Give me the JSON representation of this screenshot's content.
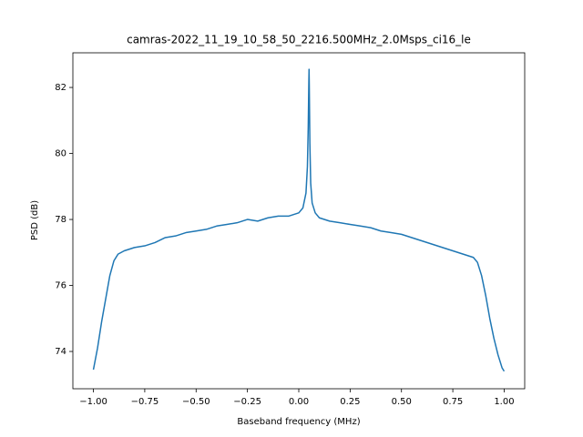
{
  "chart_data": {
    "type": "line",
    "title": "camras-2022_11_19_10_58_50_2216.500MHz_2.0Msps_ci16_le",
    "x_label": "Baseband frequency (MHz)",
    "y_label": "PSD (dB)",
    "series": [
      {
        "color": "#1f77b4",
        "x": [
          -1.0,
          -0.98,
          -0.96,
          -0.94,
          -0.92,
          -0.9,
          -0.88,
          -0.85,
          -0.8,
          -0.75,
          -0.7,
          -0.65,
          -0.6,
          -0.55,
          -0.5,
          -0.45,
          -0.4,
          -0.35,
          -0.3,
          -0.25,
          -0.2,
          -0.15,
          -0.1,
          -0.05,
          0.0,
          0.02,
          0.035,
          0.042,
          0.046,
          0.049,
          0.05,
          0.051,
          0.054,
          0.058,
          0.065,
          0.08,
          0.1,
          0.15,
          0.2,
          0.25,
          0.3,
          0.35,
          0.4,
          0.45,
          0.5,
          0.55,
          0.6,
          0.65,
          0.7,
          0.75,
          0.8,
          0.85,
          0.87,
          0.89,
          0.91,
          0.93,
          0.95,
          0.97,
          0.99,
          1.0
        ],
        "values": [
          73.45,
          74.1,
          74.9,
          75.6,
          76.3,
          76.75,
          76.95,
          77.05,
          77.15,
          77.2,
          77.3,
          77.45,
          77.5,
          77.6,
          77.65,
          77.7,
          77.8,
          77.85,
          77.9,
          78.0,
          77.95,
          78.05,
          78.1,
          78.1,
          78.2,
          78.35,
          78.8,
          79.6,
          80.8,
          82.2,
          82.55,
          82.1,
          80.3,
          79.1,
          78.5,
          78.2,
          78.05,
          77.95,
          77.9,
          77.85,
          77.8,
          77.75,
          77.65,
          77.6,
          77.55,
          77.45,
          77.35,
          77.25,
          77.15,
          77.05,
          76.95,
          76.85,
          76.7,
          76.3,
          75.7,
          75.0,
          74.4,
          73.9,
          73.5,
          73.4
        ]
      }
    ],
    "xlim": [
      -1.1,
      1.1
    ],
    "ylim": [
      72.87,
      83.05
    ],
    "xticks": [
      {
        "value": -1,
        "label": "−1.00"
      },
      {
        "value": -0.75,
        "label": "−0.75"
      },
      {
        "value": -0.5,
        "label": "−0.50"
      },
      {
        "value": -0.25,
        "label": "−0.25"
      },
      {
        "value": 0,
        "label": "0.00"
      },
      {
        "value": 0.25,
        "label": "0.25"
      },
      {
        "value": 0.5,
        "label": "0.50"
      },
      {
        "value": 0.75,
        "label": "0.75"
      },
      {
        "value": 1,
        "label": "1.00"
      }
    ],
    "yticks": [
      74,
      76,
      78,
      80,
      82
    ]
  }
}
